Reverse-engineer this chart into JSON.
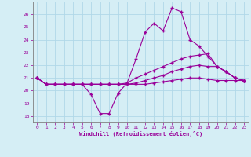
{
  "x": [
    0,
    1,
    2,
    3,
    4,
    5,
    6,
    7,
    8,
    9,
    10,
    11,
    12,
    13,
    14,
    15,
    16,
    17,
    18,
    19,
    20,
    21,
    22,
    23
  ],
  "line1": [
    21.0,
    20.5,
    20.5,
    20.5,
    20.5,
    20.5,
    19.7,
    18.2,
    18.2,
    19.8,
    20.6,
    22.5,
    24.6,
    25.3,
    24.7,
    26.5,
    26.2,
    24.0,
    23.5,
    22.7,
    21.9,
    21.5,
    21.0,
    20.8
  ],
  "line2": [
    21.0,
    20.5,
    20.5,
    20.5,
    20.5,
    20.5,
    20.5,
    20.5,
    20.5,
    20.5,
    20.6,
    21.0,
    21.3,
    21.6,
    21.9,
    22.2,
    22.5,
    22.7,
    22.8,
    22.9,
    21.9,
    21.5,
    21.0,
    20.8
  ],
  "line3": [
    21.0,
    20.5,
    20.5,
    20.5,
    20.5,
    20.5,
    20.5,
    20.5,
    20.5,
    20.5,
    20.5,
    20.6,
    20.8,
    21.0,
    21.2,
    21.5,
    21.7,
    21.9,
    22.0,
    21.9,
    21.9,
    21.5,
    21.0,
    20.8
  ],
  "line4": [
    21.0,
    20.5,
    20.5,
    20.5,
    20.5,
    20.5,
    20.5,
    20.5,
    20.5,
    20.5,
    20.5,
    20.5,
    20.5,
    20.6,
    20.7,
    20.8,
    20.9,
    21.0,
    21.0,
    20.9,
    20.8,
    20.8,
    20.8,
    20.8
  ],
  "color": "#990099",
  "bg_color": "#d5eef5",
  "grid_color": "#b0d8e8",
  "xlabel": "Windchill (Refroidissement éolien,°C)",
  "xlim": [
    -0.5,
    23.5
  ],
  "ylim": [
    17.5,
    27.0
  ],
  "yticks": [
    18,
    19,
    20,
    21,
    22,
    23,
    24,
    25,
    26
  ],
  "xticks": [
    0,
    1,
    2,
    3,
    4,
    5,
    6,
    7,
    8,
    9,
    10,
    11,
    12,
    13,
    14,
    15,
    16,
    17,
    18,
    19,
    20,
    21,
    22,
    23
  ],
  "linewidth": 0.8,
  "marker": "+",
  "markersize": 3.5,
  "markeredgewidth": 1.0
}
